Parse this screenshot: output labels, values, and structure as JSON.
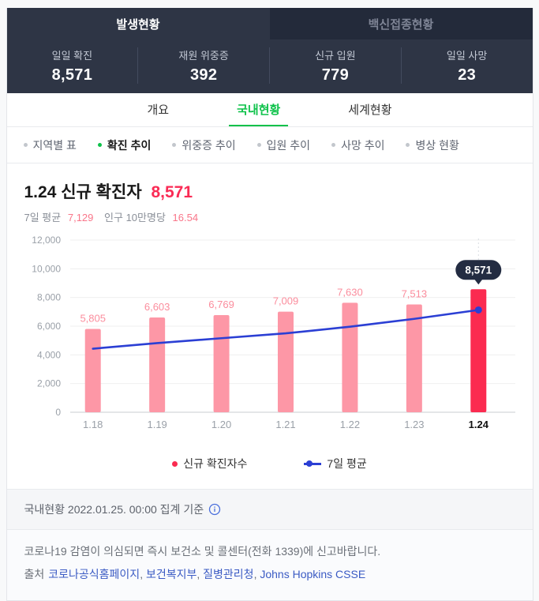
{
  "colors": {
    "navy": "#2e3545",
    "navy_dark": "#232a3a",
    "accent_green": "#0ec24a",
    "bar_pink": "#fd97a6",
    "bar_label_pink": "#fb8d9d",
    "bar_red": "#fb2b50",
    "line_blue": "#2b3fd4",
    "title_red": "#fa2b55",
    "link_blue": "#3b5bc4",
    "tooltip_bg": "#232c42"
  },
  "header": {
    "tabs": [
      {
        "label": "발생현황",
        "active": true
      },
      {
        "label": "백신접종현황",
        "active": false
      }
    ],
    "stats": [
      {
        "label": "일일 확진",
        "value": "8,571"
      },
      {
        "label": "재원 위중증",
        "value": "392"
      },
      {
        "label": "신규 입원",
        "value": "779"
      },
      {
        "label": "일일 사망",
        "value": "23"
      }
    ]
  },
  "view_tabs": [
    {
      "label": "개요",
      "active": false
    },
    {
      "label": "국내현황",
      "active": true
    },
    {
      "label": "세계현황",
      "active": false
    }
  ],
  "sub_nav": [
    {
      "label": "지역별 표",
      "active": false
    },
    {
      "label": "확진 추이",
      "active": true
    },
    {
      "label": "위중증 추이",
      "active": false
    },
    {
      "label": "입원 추이",
      "active": false
    },
    {
      "label": "사망 추이",
      "active": false
    },
    {
      "label": "병상 현황",
      "active": false
    }
  ],
  "chart_header": {
    "title": "1.24 신규 확진자",
    "value": "8,571",
    "avg_label": "7일 평균",
    "avg_value": "7,129",
    "per_capita_label": "인구 10만명당",
    "per_capita_value": "16.54"
  },
  "chart_data": {
    "type": "bar",
    "categories": [
      "1.18",
      "1.19",
      "1.20",
      "1.21",
      "1.22",
      "1.23",
      "1.24"
    ],
    "series": [
      {
        "name": "신규 확진자수",
        "type": "bar",
        "color": "#fd97a6",
        "values": [
          5805,
          6603,
          6769,
          7009,
          7630,
          7513,
          8571
        ]
      },
      {
        "name": "7일 평균",
        "type": "line",
        "color": "#2b3fd4",
        "values": [
          4430,
          4820,
          5160,
          5500,
          5960,
          6510,
          7129
        ]
      }
    ],
    "title": "1.24 신규 확진자 8,571",
    "xlabel": "",
    "ylabel": "",
    "ylim": [
      0,
      12000
    ],
    "yticks": [
      0,
      2000,
      4000,
      6000,
      8000,
      10000,
      12000
    ],
    "grid": true,
    "legend_position": "bottom",
    "highlight_index": 6,
    "highlight_color": "#fb2b50",
    "tooltip": "8,571"
  },
  "legend": [
    {
      "label": "신규 확진자수",
      "marker": "dot",
      "color": "#fa2b50"
    },
    {
      "label": "7일 평균",
      "marker": "line",
      "color": "#2b3fd4"
    }
  ],
  "meta": {
    "text": "국내현황 2022.01.25. 00:00 집계 기준"
  },
  "notice": {
    "line1": "코로나19 감염이 의심되면 즉시 보건소 및 콜센터(전화 1339)에 신고바랍니다.",
    "source_label": "출처",
    "sources": [
      "코로나공식홈페이지",
      "보건복지부",
      "질병관리청",
      "Johns Hopkins CSSE"
    ]
  }
}
